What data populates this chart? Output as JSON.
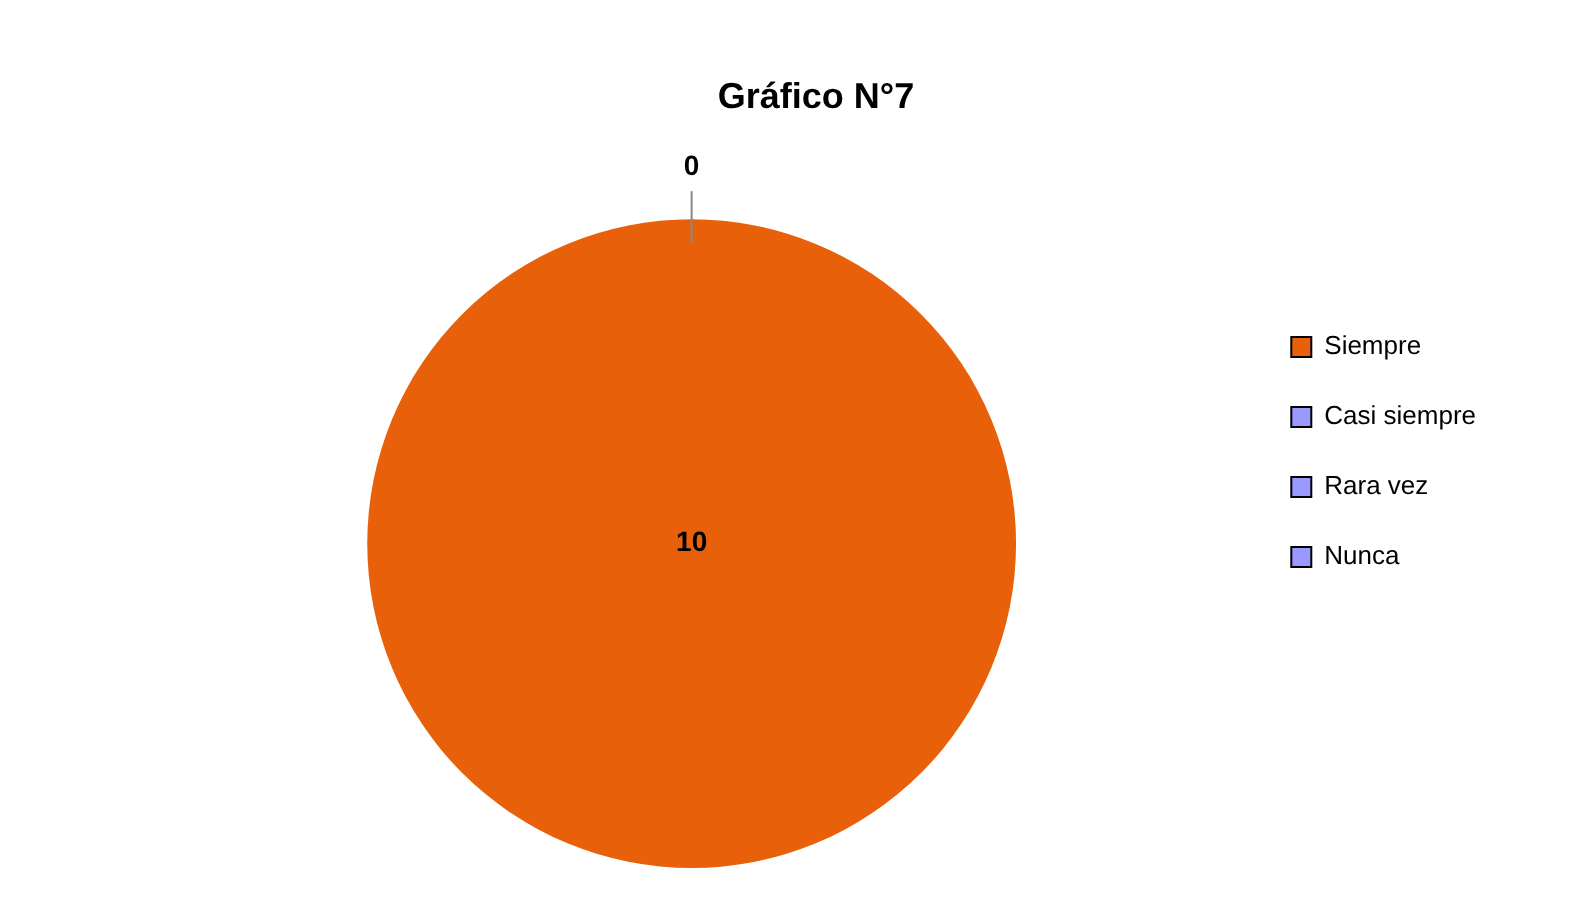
{
  "chart_data": {
    "type": "pie",
    "title": "Gráfico N°7",
    "categories": [
      "Siempre",
      "Casi siempre",
      "Rara vez",
      "Nunca"
    ],
    "values": [
      10,
      0,
      0,
      0
    ],
    "colors": [
      "#e8600a",
      "#9999ff",
      "#9999ff",
      "#9999ff"
    ],
    "value_labels": [
      "10",
      "0",
      null,
      null
    ],
    "legend": "right"
  }
}
